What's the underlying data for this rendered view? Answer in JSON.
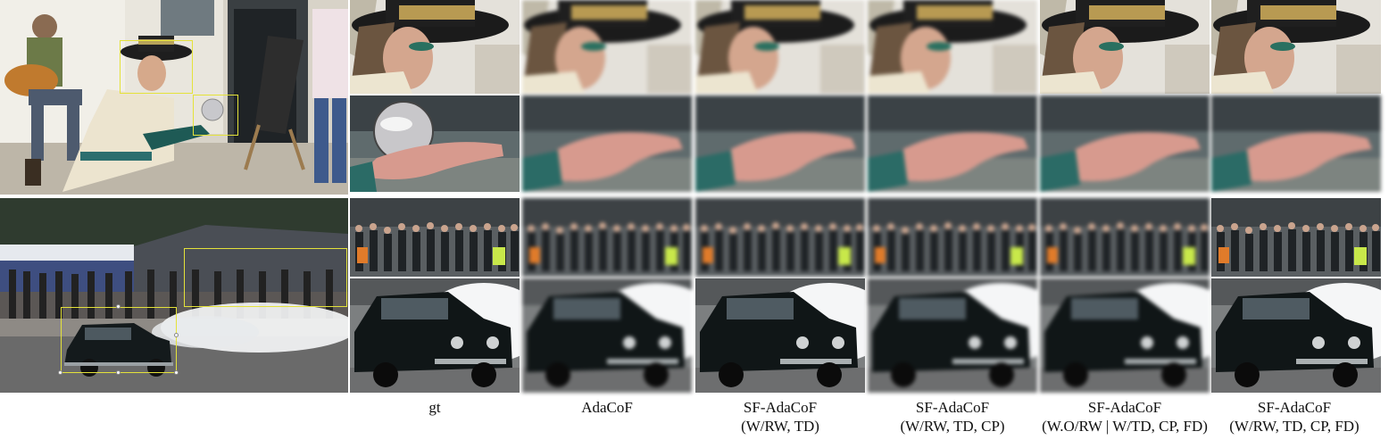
{
  "figure": {
    "columns": [
      {
        "id": "gt",
        "line1": "gt",
        "line2": ""
      },
      {
        "id": "adacof",
        "line1": "AdaCoF",
        "line2": ""
      },
      {
        "id": "sf-td",
        "line1": "SF-AdaCoF",
        "line2": "(W/RW, TD)"
      },
      {
        "id": "sf-td-cp",
        "line1": "SF-AdaCoF",
        "line2": "(W/RW, TD, CP)"
      },
      {
        "id": "sf-wo",
        "line1": "SF-AdaCoF",
        "line2": "(W.O/RW | W/TD, CP, FD)"
      },
      {
        "id": "sf-full",
        "line1": "SF-AdaCoF",
        "line2": "(W/RW, TD, CP, FD)"
      }
    ],
    "scenes": [
      {
        "id": "street-performer",
        "description_icon": "photo-icon"
      },
      {
        "id": "car-burnout",
        "description_icon": "photo-icon"
      }
    ],
    "colors": {
      "highlight_box": "#e4e23a",
      "separator": "#ffffff"
    }
  }
}
